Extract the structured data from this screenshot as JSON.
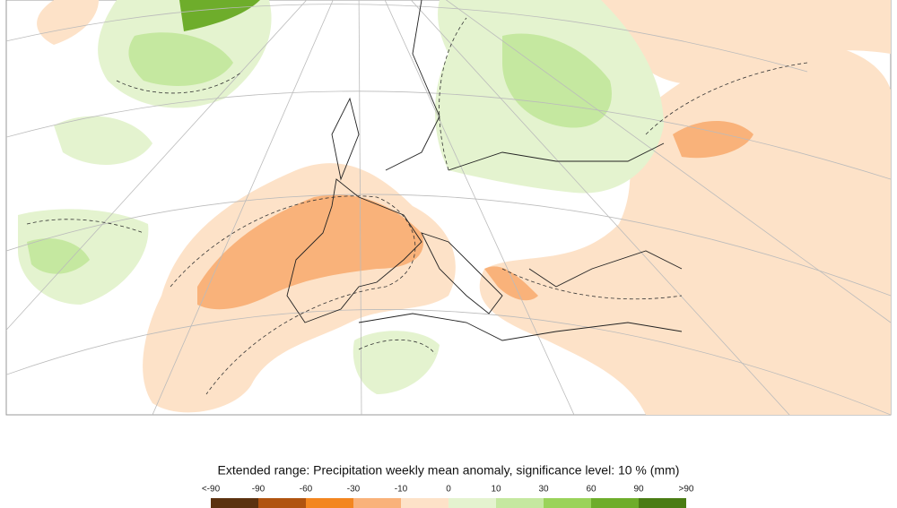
{
  "legend": {
    "title": "Extended range: Precipitation weekly mean anomaly, significance level: 10 % (mm)",
    "labels": [
      "<-90",
      "-90",
      "-60",
      "-30",
      "-10",
      "0",
      "10",
      "30",
      "60",
      "90",
      ">90"
    ],
    "colors": [
      "#5b320f",
      "#b0530f",
      "#f3861f",
      "#f9b27a",
      "#fde2c8",
      "#e4f3cf",
      "#c5e8a0",
      "#9ad35a",
      "#6ead2b",
      "#4a7c14"
    ]
  }
}
